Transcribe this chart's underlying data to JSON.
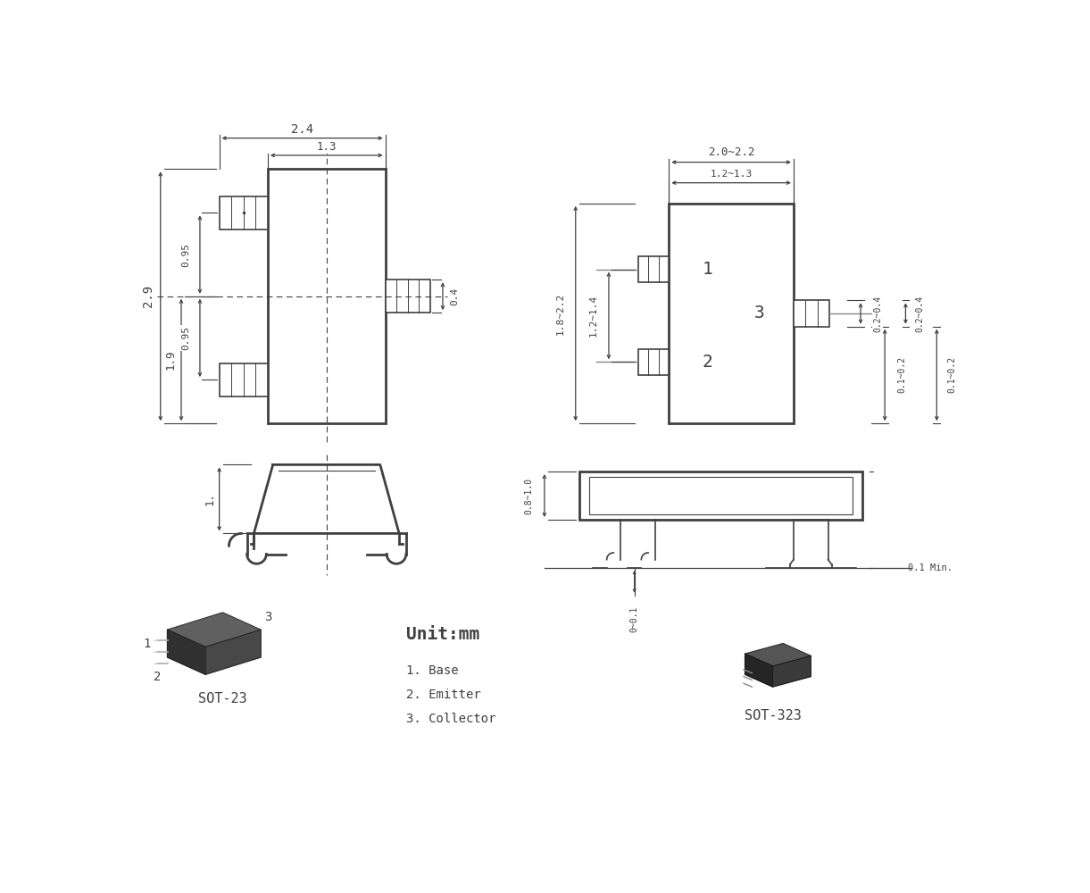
{
  "bg_color": "#ffffff",
  "line_color": "#404040",
  "text_color": "#404040",
  "dims_sot23": {
    "width_outer": "2.4",
    "width_inner": "1.3",
    "height": "2.9",
    "height_half": "1.9",
    "pin_spacing": "0.95",
    "pin_height": "0.4",
    "height_side": "1."
  },
  "dims_sot323": {
    "width_outer": "2.0~2.2",
    "width_inner": "1.2~1.3",
    "height": "1.8~2.2",
    "pin_spacing": "1.2~1.4",
    "pin_height": "0.2~0.4",
    "pin_width": "0.1~0.2",
    "lead_height": "0.8~1.0",
    "lead_protrusion": "0~0.1",
    "pin_min": "0.1 Min."
  },
  "labels": {
    "sot23": "SOT-23",
    "sot323": "SOT-323",
    "unit": "Unit:mm",
    "pin1": "1. Base",
    "pin2": "2. Emitter",
    "pin3": "3. Collector",
    "n1": "1",
    "n2": "2",
    "n3": "3"
  }
}
